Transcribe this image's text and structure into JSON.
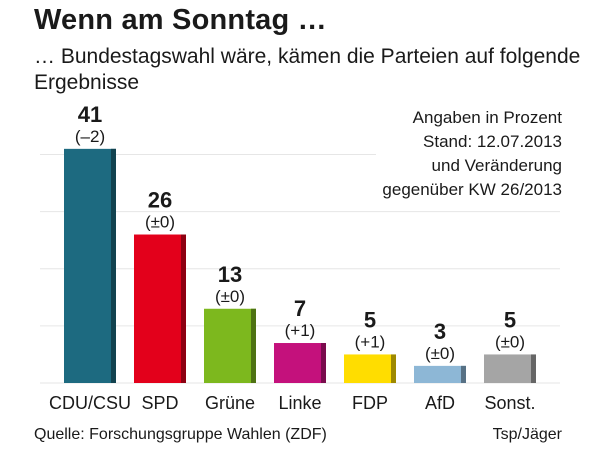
{
  "title": "Wenn am Sonntag …",
  "subtitle": "… Bundestagswahl wäre, kämen die Parteien auf folgende Ergebnisse",
  "note": "Angaben in Prozent\nStand: 12.07.2013\nund Veränderung\ngegenüber KW 26/2013",
  "source": "Quelle: Forschungsgruppe Wahlen (ZDF)",
  "credit": "Tsp/Jäger",
  "chart_data": {
    "type": "bar",
    "title": "Wenn am Sonntag …",
    "subtitle": "… Bundestagswahl wäre, kämen die Parteien auf folgende Ergebnisse",
    "unit": "Angaben in Prozent",
    "categories": [
      "CDU/CSU",
      "SPD",
      "Grüne",
      "Linke",
      "FDP",
      "AfD",
      "Sonst."
    ],
    "values": [
      41,
      26,
      13,
      7,
      5,
      3,
      5
    ],
    "changes": [
      "(–2)",
      "(±0)",
      "(±0)",
      "(+1)",
      "(+1)",
      "(±0)",
      "(±0)"
    ],
    "colors": [
      "#1d6a80",
      "#e3001b",
      "#7db81e",
      "#c4117c",
      "#ffdd00",
      "#8db7d6",
      "#a5a5a5"
    ],
    "ylim": [
      0,
      45
    ],
    "grid": true,
    "legend": "none"
  }
}
